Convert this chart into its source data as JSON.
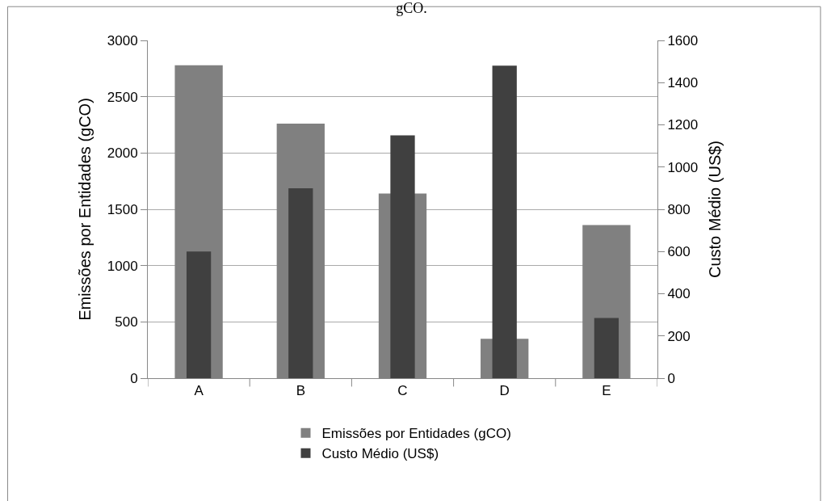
{
  "chart_data": {
    "type": "bar",
    "title": "gCO.",
    "categories": [
      "A",
      "B",
      "C",
      "D",
      "E"
    ],
    "ylabel": "Emissões por Entidades (gCO)",
    "y2label": "Custo Médio (US$)",
    "series": [
      {
        "name": "Emissões por Entidades (gCO)",
        "color": "#808080",
        "values": [
          2780,
          2260,
          1640,
          350,
          1360
        ]
      },
      {
        "name": "Custo Médio (US$)",
        "color": "#404040",
        "axis": "y2",
        "values": [
          600,
          900,
          1150,
          1480,
          285
        ]
      }
    ],
    "ylim": [
      0,
      3000
    ],
    "yticks": [
      0,
      500,
      1000,
      1500,
      2000,
      2500,
      3000
    ],
    "y2lim": [
      0,
      1600
    ],
    "y2ticks": [
      0,
      200,
      400,
      600,
      800,
      1000,
      1200,
      1400,
      1600
    ],
    "grid": "y",
    "legend": "bottom"
  }
}
